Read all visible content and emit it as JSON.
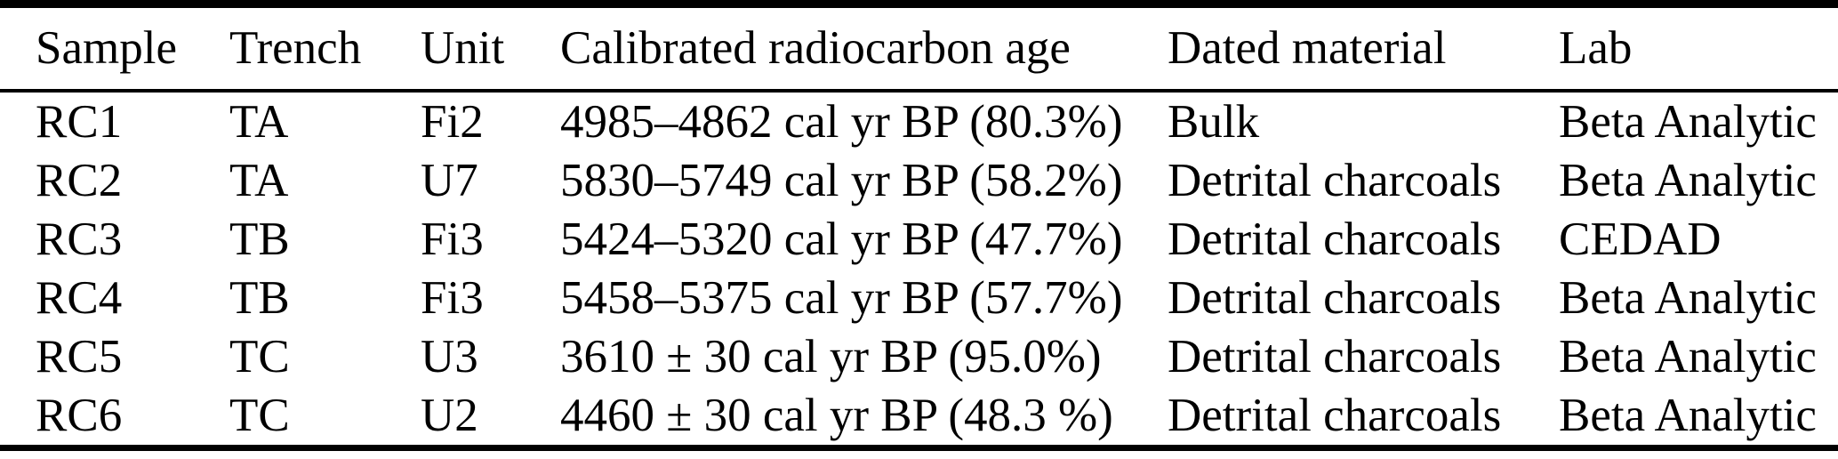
{
  "colors": {
    "background": "#ffffff",
    "text": "#000000",
    "rule": "#000000"
  },
  "table": {
    "columns": [
      "Sample",
      "Trench",
      "Unit",
      "Calibrated radiocarbon age",
      "Dated material",
      "Lab"
    ],
    "rows": [
      [
        "RC1",
        "TA",
        "Fi2",
        "4985–4862 cal yr BP (80.3%)",
        "Bulk",
        "Beta Analytic"
      ],
      [
        "RC2",
        "TA",
        "U7",
        "5830–5749 cal yr BP (58.2%)",
        "Detrital charcoals",
        "Beta Analytic"
      ],
      [
        "RC3",
        "TB",
        "Fi3",
        "5424–5320 cal yr BP (47.7%)",
        "Detrital charcoals",
        "CEDAD"
      ],
      [
        "RC4",
        "TB",
        "Fi3",
        "5458–5375 cal yr BP (57.7%)",
        "Detrital charcoals",
        "Beta Analytic"
      ],
      [
        "RC5",
        "TC",
        "U3",
        "3610 ± 30 cal yr BP (95.0%)",
        "Detrital charcoals",
        "Beta Analytic"
      ],
      [
        "RC6",
        "TC",
        "U2",
        "4460 ± 30 cal yr BP (48.3 %)",
        "Detrital charcoals",
        "Beta Analytic"
      ]
    ]
  }
}
